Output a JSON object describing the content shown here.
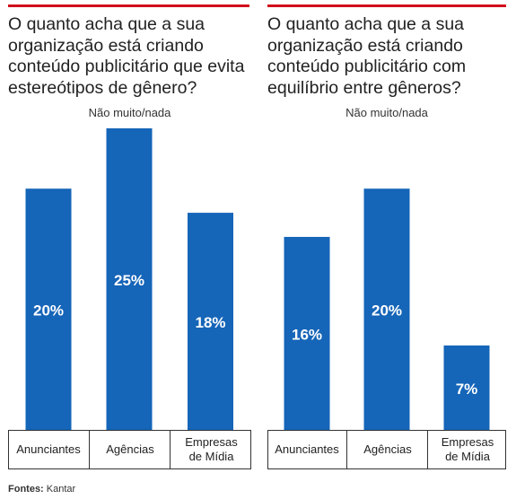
{
  "chart_data": [
    {
      "type": "bar",
      "title": "O quanto acha que a sua organização está criando conteúdo publicitário que evita estereótipos de gênero?",
      "subtitle": "Não muito/nada",
      "categories": [
        "Anunciantes",
        "Agências",
        "Empresas de Mídia"
      ],
      "values": [
        20,
        25,
        18
      ],
      "value_labels": [
        "20%",
        "25%",
        "18%"
      ],
      "ylim": [
        0,
        25
      ],
      "color": "#1565b8",
      "grid": false
    },
    {
      "type": "bar",
      "title": "O quanto acha que a sua organização está criando conteúdo publicitário com equilíbrio entre gêneros?",
      "subtitle": "Não muito/nada",
      "categories": [
        "Anunciantes",
        "Agências",
        "Empresas de Mídia"
      ],
      "values": [
        16,
        20,
        7
      ],
      "value_labels": [
        "16%",
        "20%",
        "7%"
      ],
      "ylim": [
        0,
        25
      ],
      "color": "#1565b8",
      "grid": false
    }
  ],
  "source": {
    "label": "Fontes:",
    "text": "Kantar"
  },
  "colors": {
    "accent_rule": "#d0101a",
    "bar": "#1565b8"
  }
}
